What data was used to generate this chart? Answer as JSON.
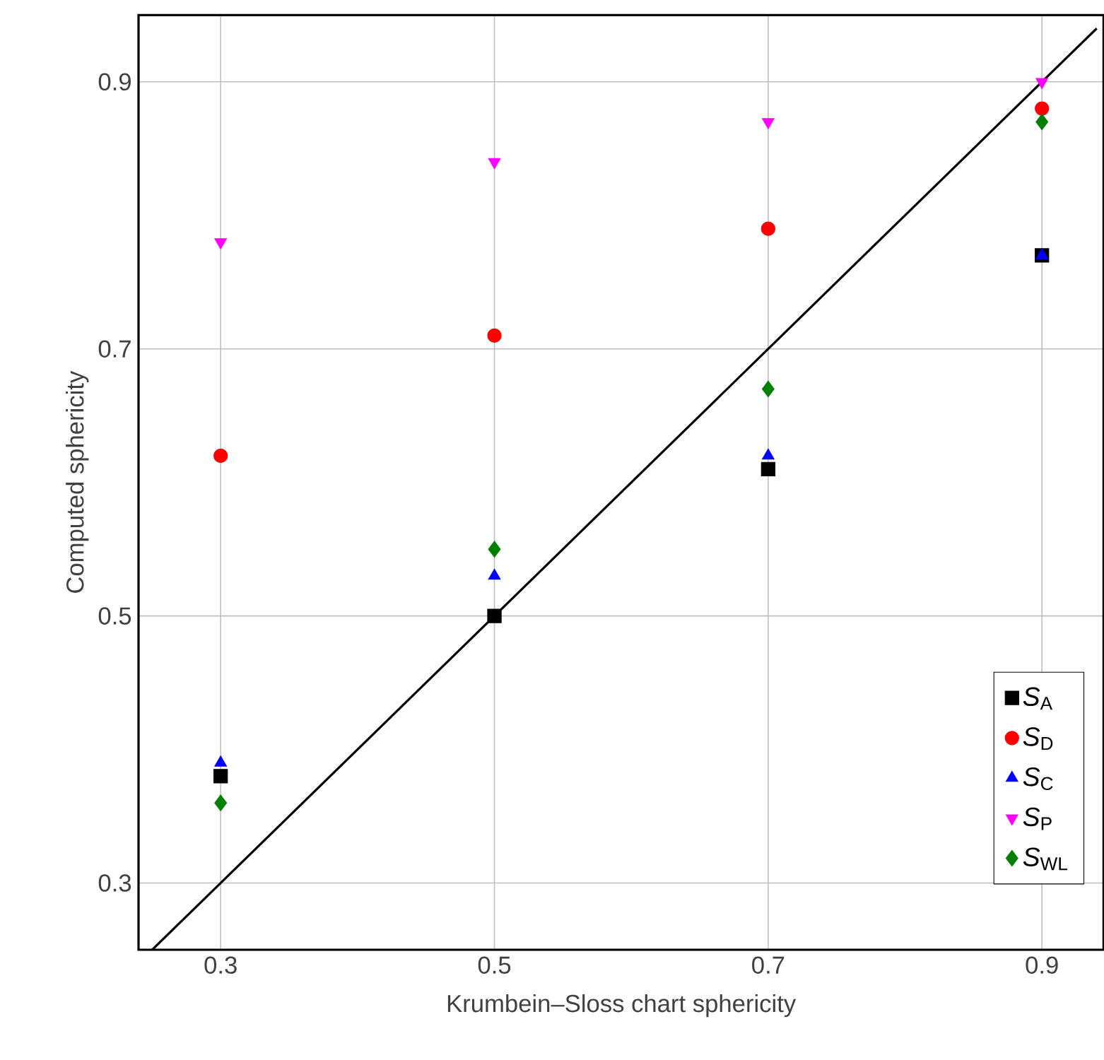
{
  "chart_data": {
    "type": "scatter",
    "xlabel": "Krumbein–Sloss chart sphericity",
    "ylabel": "Computed sphericity",
    "xlim": [
      0.24,
      0.945
    ],
    "ylim": [
      0.25,
      0.95
    ],
    "xticks": [
      0.3,
      0.5,
      0.7,
      0.9
    ],
    "yticks": [
      0.3,
      0.5,
      0.7,
      0.9
    ],
    "grid": true,
    "legend": "bottom right",
    "x": [
      0.3,
      0.5,
      0.7,
      0.9
    ],
    "series": [
      {
        "name": "*S*$_{A}$",
        "color": "#000000",
        "marker": "square",
        "values": [
          0.38,
          0.5,
          0.61,
          0.77
        ]
      },
      {
        "name": "*S*$_{D}$",
        "color": "#ff0000",
        "marker": "circle",
        "values": [
          0.62,
          0.71,
          0.79,
          0.88
        ]
      },
      {
        "name": "*S*$_{C}$",
        "color": "#0000ff",
        "marker": "triangle",
        "values": [
          0.39,
          0.53,
          0.62,
          0.77
        ]
      },
      {
        "name": "*S*$_{P}$",
        "color": "#ff00ff",
        "marker": "triangle_down",
        "values": [
          0.78,
          0.84,
          0.87,
          0.9
        ]
      },
      {
        "name": "*S*$_{WL}$",
        "color": "#008000",
        "marker": "diamond",
        "values": [
          0.36,
          0.55,
          0.67,
          0.87
        ]
      },
      {
        "type": "line",
        "color": "#000000",
        "marker": "none",
        "x": [
          0.25,
          0.94
        ],
        "values": [
          0.25,
          0.94
        ]
      }
    ]
  }
}
